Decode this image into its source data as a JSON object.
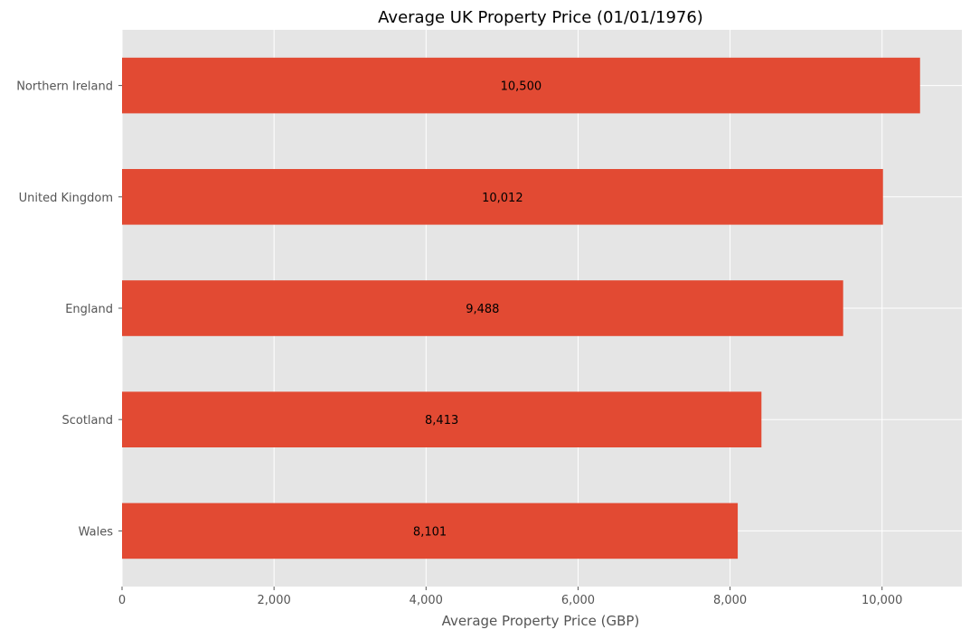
{
  "chart_data": {
    "type": "bar",
    "orientation": "horizontal",
    "title": "Average UK Property Price (01/01/1976)",
    "xlabel": "Average Property Price (GBP)",
    "ylabel": "",
    "categories": [
      "Northern Ireland",
      "United Kingdom",
      "England",
      "Scotland",
      "Wales"
    ],
    "values": [
      10500,
      10012,
      9488,
      8413,
      8101
    ],
    "value_labels": [
      "10,500",
      "10,012",
      "9,488",
      "8,413",
      "8,101"
    ],
    "xlim": [
      0,
      11050
    ],
    "xticks": [
      0,
      2000,
      4000,
      6000,
      8000,
      10000
    ],
    "xtick_labels": [
      "0",
      "2,000",
      "4,000",
      "6,000",
      "8,000",
      "10,000"
    ],
    "grid": true,
    "legend": "none",
    "colors": {
      "bar": "#e24a33",
      "plot_background": "#e5e5e5",
      "grid": "#ffffff",
      "text": "#555555"
    }
  }
}
